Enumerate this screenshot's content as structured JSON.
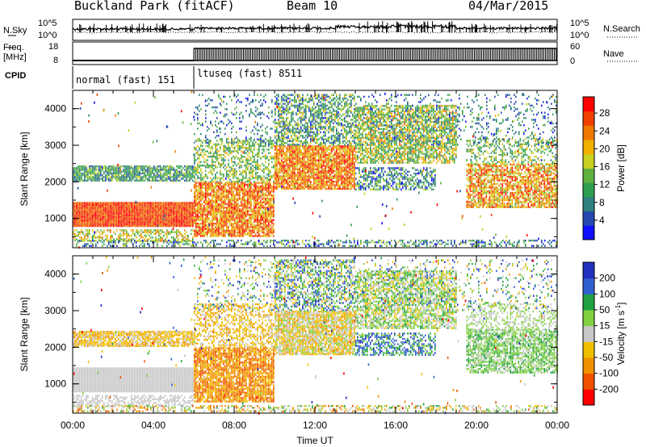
{
  "header": {
    "station": "Buckland Park (fitACF)",
    "beam": "Beam 10",
    "date": "04/Mar/2015"
  },
  "panels": {
    "nsky_label": "N.Sky",
    "nsearch_label": "N.Search",
    "nsky_ticks": [
      "10^5",
      "10^0"
    ],
    "nsearch_ticks": [
      "10^5",
      "10^0"
    ],
    "freq_label_1": "Freq.",
    "freq_label_2": "[MHz]",
    "freq_ticks": [
      "18",
      "8"
    ],
    "nave_label": "Nave",
    "nave_ticks": [
      "60",
      "0"
    ],
    "cpid_label": "CPID",
    "cpid_segments": [
      {
        "label": "normal (fast) 151",
        "start_hour": 0,
        "end_hour": 6
      },
      {
        "label": "ltuseq (fast) 8511",
        "start_hour": 6,
        "end_hour": 24
      }
    ]
  },
  "chart_data": [
    {
      "type": "heatmap",
      "quantity": "power",
      "ylabel": "Slant Range [km]",
      "xlabel": "Time UT",
      "y_ticks": [
        "1000",
        "2000",
        "3000",
        "4000"
      ],
      "ylim": [
        200,
        4500
      ],
      "x_ticks": [
        "00:00",
        "04:00",
        "08:00",
        "12:00",
        "16:00",
        "20:00",
        "00:00"
      ],
      "xlim_hours": [
        0,
        24
      ],
      "colorbar": {
        "label": "Power [dB]",
        "ticks": [
          "4",
          "8",
          "12",
          "16",
          "20",
          "24",
          "28"
        ],
        "colors": [
          "#1010ff",
          "#2448b0",
          "#2f7f7f",
          "#2f9f4f",
          "#60b040",
          "#c8d020",
          "#f0b000",
          "#f07800",
          "#f04000",
          "#ff0000"
        ]
      }
    },
    {
      "type": "heatmap",
      "quantity": "velocity",
      "ylabel": "Slant Range [km]",
      "xlabel": "Time UT",
      "y_ticks": [
        "1000",
        "2000",
        "3000",
        "4000"
      ],
      "ylim": [
        200,
        4500
      ],
      "x_ticks": [
        "00:00",
        "04:00",
        "08:00",
        "12:00",
        "16:00",
        "20:00",
        "00:00"
      ],
      "xlim_hours": [
        0,
        24
      ],
      "colorbar": {
        "label_main": "Velocity [m s",
        "label_sup": "-1",
        "label_end": "]",
        "ticks": [
          "200",
          "100",
          "50",
          "15",
          "-15",
          "-50",
          "-100",
          "-200"
        ],
        "colors": [
          "#2030c0",
          "#3060d0",
          "#20a040",
          "#80d040",
          "#c8c8c8",
          "#f0c000",
          "#f09000",
          "#f05000",
          "#ff0000"
        ]
      }
    }
  ]
}
